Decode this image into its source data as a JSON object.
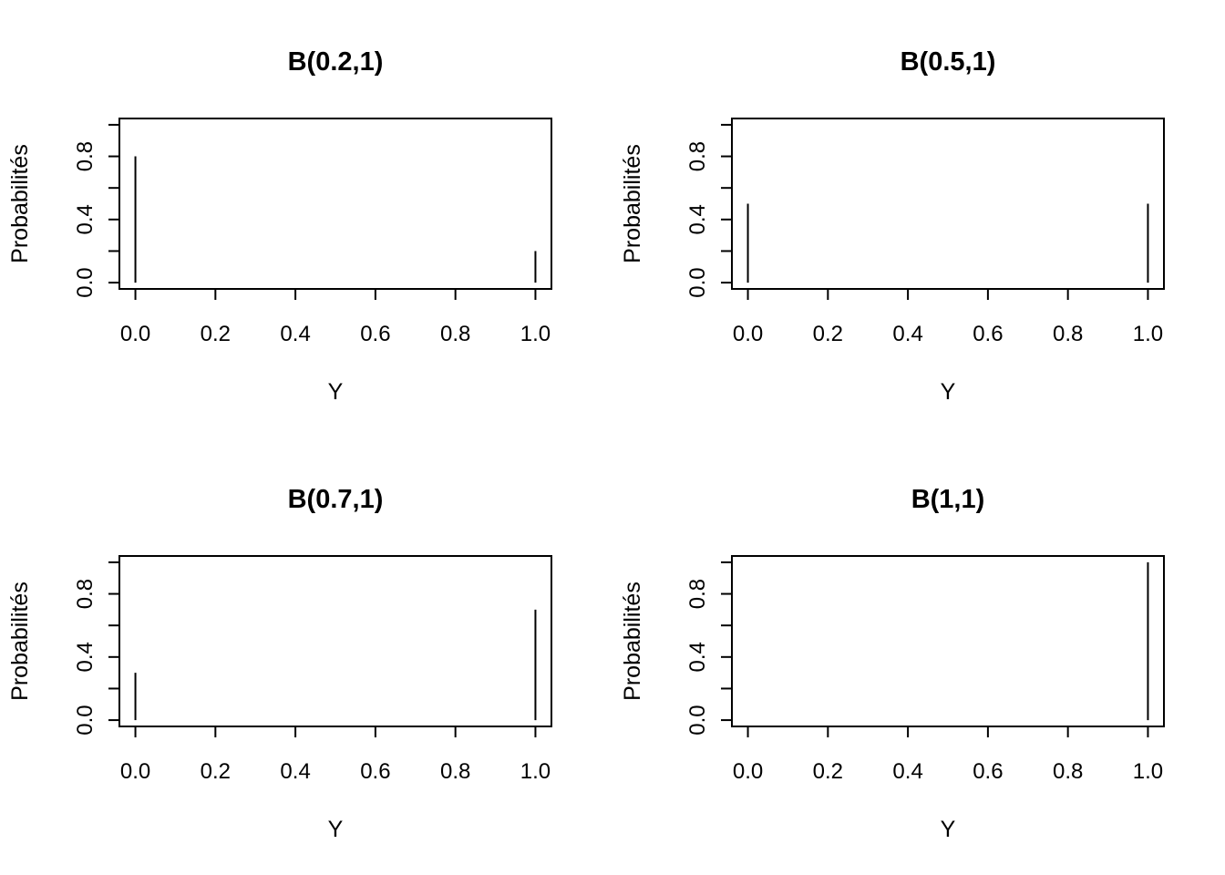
{
  "chart_data": [
    {
      "type": "bar",
      "title": "B(0.2,1)",
      "xlabel": "Y",
      "ylabel": "Probabilités",
      "x": [
        0,
        1
      ],
      "values": [
        0.8,
        0.2
      ],
      "xlim": [
        -0.04,
        1.04
      ],
      "ylim": [
        -0.04,
        1.04
      ],
      "xticks": [
        "0.0",
        "0.2",
        "0.4",
        "0.6",
        "0.8",
        "1.0"
      ],
      "yticks": [
        "0.0",
        "0.4",
        "0.8"
      ],
      "grid": false
    },
    {
      "type": "bar",
      "title": "B(0.5,1)",
      "xlabel": "Y",
      "ylabel": "Probabilités",
      "x": [
        0,
        1
      ],
      "values": [
        0.5,
        0.5
      ],
      "xlim": [
        -0.04,
        1.04
      ],
      "ylim": [
        -0.04,
        1.04
      ],
      "xticks": [
        "0.0",
        "0.2",
        "0.4",
        "0.6",
        "0.8",
        "1.0"
      ],
      "yticks": [
        "0.0",
        "0.4",
        "0.8"
      ],
      "grid": false
    },
    {
      "type": "bar",
      "title": "B(0.7,1)",
      "xlabel": "Y",
      "ylabel": "Probabilités",
      "x": [
        0,
        1
      ],
      "values": [
        0.3,
        0.7
      ],
      "xlim": [
        -0.04,
        1.04
      ],
      "ylim": [
        -0.04,
        1.04
      ],
      "xticks": [
        "0.0",
        "0.2",
        "0.4",
        "0.6",
        "0.8",
        "1.0"
      ],
      "yticks": [
        "0.0",
        "0.4",
        "0.8"
      ],
      "grid": false
    },
    {
      "type": "bar",
      "title": "B(1,1)",
      "xlabel": "Y",
      "ylabel": "Probabilités",
      "x": [
        0,
        1
      ],
      "values": [
        0.0,
        1.0
      ],
      "xlim": [
        -0.04,
        1.04
      ],
      "ylim": [
        -0.04,
        1.04
      ],
      "xticks": [
        "0.0",
        "0.2",
        "0.4",
        "0.6",
        "0.8",
        "1.0"
      ],
      "yticks": [
        "0.0",
        "0.4",
        "0.8"
      ],
      "grid": false
    }
  ]
}
